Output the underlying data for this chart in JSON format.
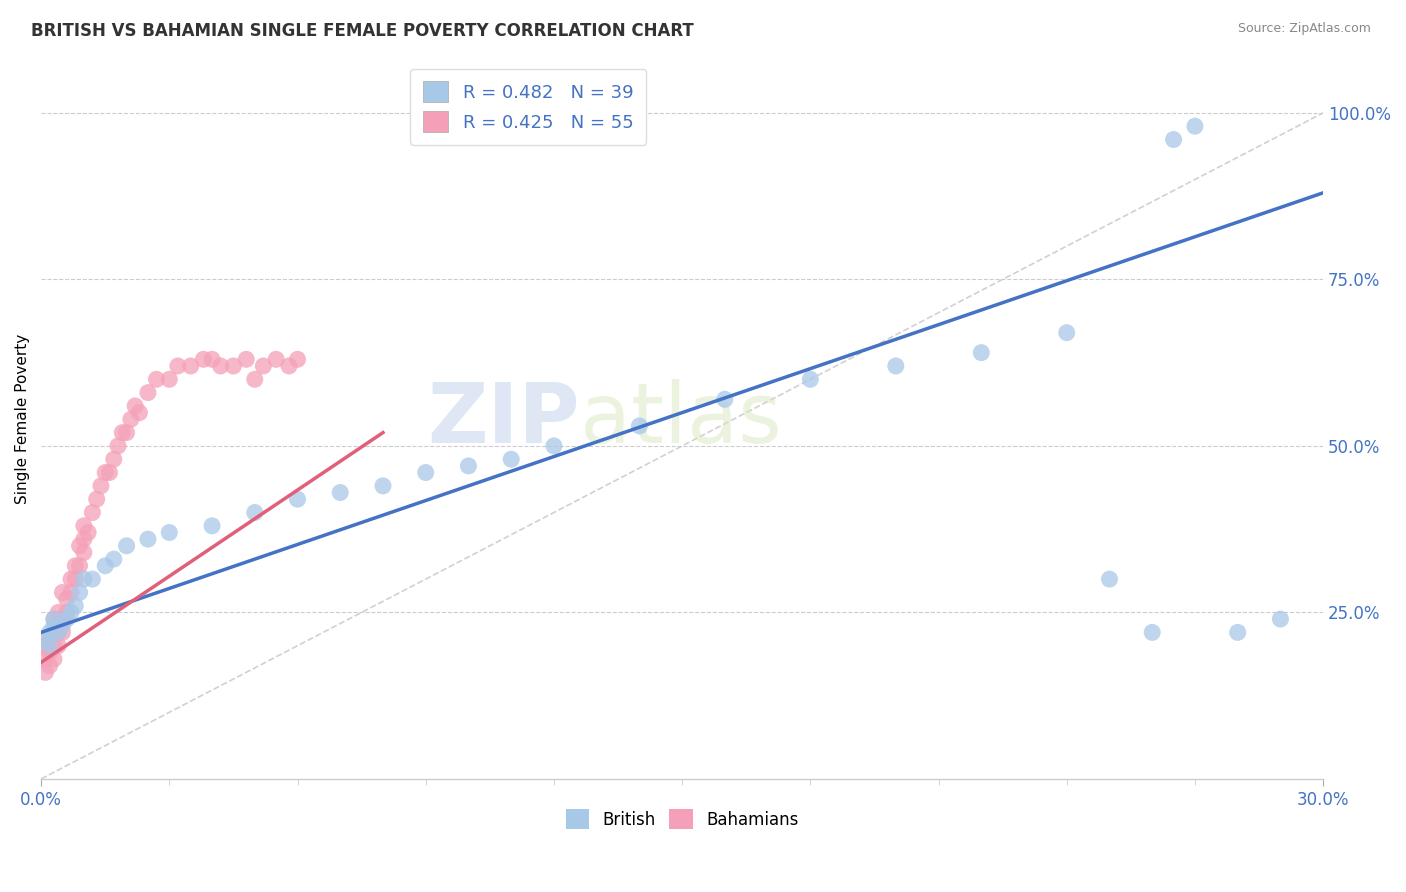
{
  "title": "BRITISH VS BAHAMIAN SINGLE FEMALE POVERTY CORRELATION CHART",
  "source": "Source: ZipAtlas.com",
  "ylabel": "Single Female Poverty",
  "legend_british": "British",
  "legend_bahamians": "Bahamians",
  "r_british": 0.482,
  "n_british": 39,
  "r_bahamians": 0.425,
  "n_bahamians": 55,
  "british_color": "#a8c8e8",
  "bahamian_color": "#f4a0b8",
  "trend_british_color": "#4472c4",
  "trend_bahamian_color": "#e0607a",
  "watermark_zip": "ZIP",
  "watermark_atlas": "atlas",
  "xlim": [
    0,
    0.3
  ],
  "ylim": [
    0,
    1.08
  ],
  "yticks": [
    0.25,
    0.5,
    0.75,
    1.0
  ],
  "british_x": [
    0.001,
    0.002,
    0.002,
    0.003,
    0.003,
    0.004,
    0.005,
    0.006,
    0.007,
    0.008,
    0.009,
    0.01,
    0.012,
    0.015,
    0.017,
    0.02,
    0.025,
    0.03,
    0.04,
    0.05,
    0.06,
    0.07,
    0.08,
    0.09,
    0.1,
    0.11,
    0.12,
    0.14,
    0.16,
    0.18,
    0.2,
    0.22,
    0.24,
    0.25,
    0.26,
    0.265,
    0.27,
    0.28,
    0.29
  ],
  "british_y": [
    0.21,
    0.2,
    0.22,
    0.23,
    0.24,
    0.22,
    0.23,
    0.24,
    0.25,
    0.26,
    0.28,
    0.3,
    0.3,
    0.32,
    0.33,
    0.35,
    0.36,
    0.37,
    0.38,
    0.4,
    0.42,
    0.43,
    0.44,
    0.46,
    0.47,
    0.48,
    0.5,
    0.53,
    0.57,
    0.6,
    0.62,
    0.64,
    0.67,
    0.3,
    0.22,
    0.96,
    0.98,
    0.22,
    0.24
  ],
  "bahamian_x": [
    0.001,
    0.001,
    0.001,
    0.002,
    0.002,
    0.002,
    0.003,
    0.003,
    0.003,
    0.003,
    0.004,
    0.004,
    0.004,
    0.005,
    0.005,
    0.005,
    0.006,
    0.006,
    0.007,
    0.007,
    0.008,
    0.008,
    0.009,
    0.009,
    0.01,
    0.01,
    0.01,
    0.011,
    0.012,
    0.013,
    0.014,
    0.015,
    0.016,
    0.017,
    0.018,
    0.019,
    0.02,
    0.021,
    0.022,
    0.023,
    0.025,
    0.027,
    0.03,
    0.032,
    0.035,
    0.038,
    0.04,
    0.042,
    0.045,
    0.048,
    0.05,
    0.052,
    0.055,
    0.058,
    0.06
  ],
  "bahamian_y": [
    0.16,
    0.18,
    0.2,
    0.17,
    0.19,
    0.21,
    0.18,
    0.2,
    0.22,
    0.24,
    0.2,
    0.22,
    0.25,
    0.22,
    0.24,
    0.28,
    0.25,
    0.27,
    0.28,
    0.3,
    0.3,
    0.32,
    0.32,
    0.35,
    0.34,
    0.36,
    0.38,
    0.37,
    0.4,
    0.42,
    0.44,
    0.46,
    0.46,
    0.48,
    0.5,
    0.52,
    0.52,
    0.54,
    0.56,
    0.55,
    0.58,
    0.6,
    0.6,
    0.62,
    0.62,
    0.63,
    0.63,
    0.62,
    0.62,
    0.63,
    0.6,
    0.62,
    0.63,
    0.62,
    0.63
  ],
  "trend_british_x0": 0.0,
  "trend_british_y0": 0.22,
  "trend_british_x1": 0.3,
  "trend_british_y1": 0.88,
  "trend_bahamian_x0": 0.0,
  "trend_bahamian_y0": 0.175,
  "trend_bahamian_x1": 0.08,
  "trend_bahamian_y1": 0.52,
  "ref_line_x0": 0.0,
  "ref_line_y0": 0.0,
  "ref_line_x1": 0.3,
  "ref_line_y1": 1.0
}
